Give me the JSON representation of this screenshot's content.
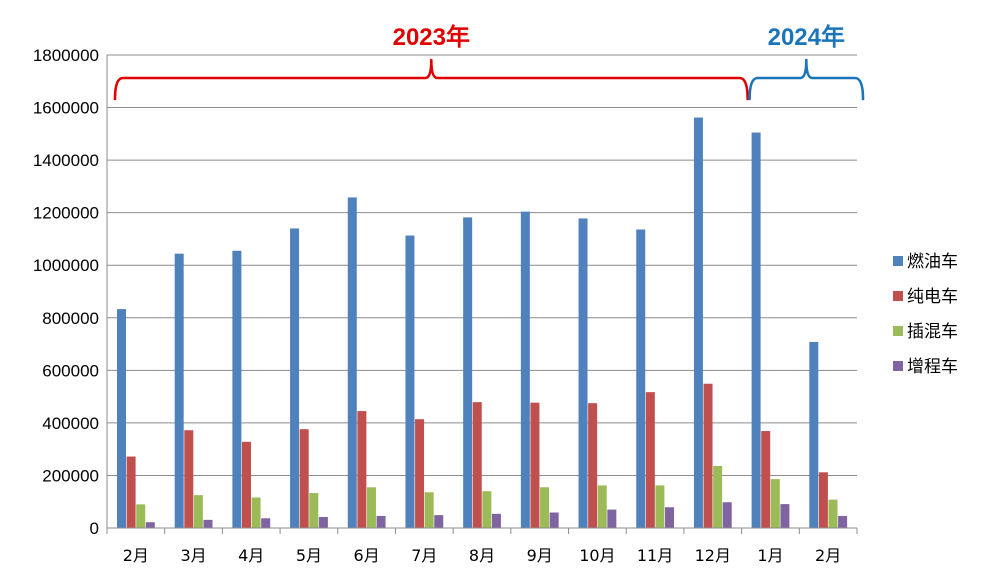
{
  "chart_data": {
    "type": "bar",
    "categories": [
      "2月",
      "3月",
      "4月",
      "5月",
      "6月",
      "7月",
      "8月",
      "9月",
      "10月",
      "11月",
      "12月",
      "1月",
      "2月"
    ],
    "series": [
      {
        "name": "燃油车",
        "color": "#4F81BD",
        "values": [
          833000,
          1044000,
          1055000,
          1140000,
          1258000,
          1113000,
          1182000,
          1204000,
          1178000,
          1136000,
          1562000,
          1505000,
          708000
        ]
      },
      {
        "name": "纯电车",
        "color": "#C0504D",
        "values": [
          272000,
          372000,
          328000,
          376000,
          445000,
          414000,
          479000,
          477000,
          475000,
          517000,
          549000,
          369000,
          212000
        ]
      },
      {
        "name": "插混车",
        "color": "#9BBB59",
        "values": [
          90000,
          125000,
          116000,
          133000,
          155000,
          136000,
          140000,
          155000,
          162000,
          162000,
          236000,
          186000,
          108000
        ]
      },
      {
        "name": "增程车",
        "color": "#8064A2",
        "values": [
          22000,
          31000,
          37000,
          42000,
          46000,
          49000,
          54000,
          59000,
          70000,
          79000,
          98000,
          91000,
          46000
        ]
      }
    ],
    "ylim": [
      0,
      1800000
    ],
    "yticks": [
      "0",
      "200000",
      "400000",
      "600000",
      "800000",
      "1000000",
      "1200000",
      "1400000",
      "1600000",
      "1800000"
    ],
    "grid": true,
    "legend_position": "right",
    "annotations": [
      {
        "label": "2023年",
        "color": "#E00000",
        "span": [
          0,
          10
        ]
      },
      {
        "label": "2024年",
        "color": "#1B75BB",
        "span": [
          11,
          12
        ]
      }
    ]
  }
}
